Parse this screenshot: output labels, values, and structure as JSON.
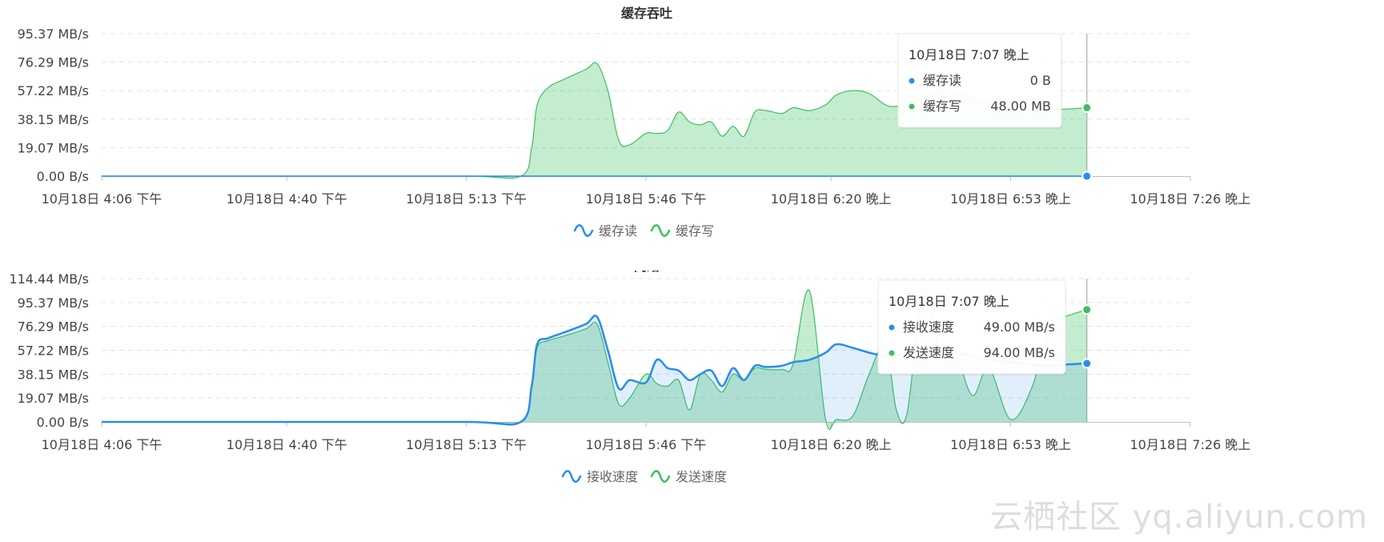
{
  "colors": {
    "read": "#2a8de9",
    "write": "#3cbf60",
    "read_fill": "rgba(42,141,233,0.14)",
    "write_fill": "rgba(60,191,96,0.30)"
  },
  "watermark": "云栖社区 yq.aliyun.com",
  "chart_data": [
    {
      "id": "cache",
      "type": "area",
      "title": "缓存吞吐",
      "x_tick_labels": [
        "10月18日 4:06 下午",
        "10月18日 4:40 下午",
        "10月18日 5:13 下午",
        "10月18日 5:46 下午",
        "10月18日 6:20 晚上",
        "10月18日 6:53 晚上",
        "10月18日 7:26 晚上"
      ],
      "y_tick_labels": [
        "0.00 B/s",
        "19.07 MB/s",
        "38.15 MB/s",
        "57.22 MB/s",
        "76.29 MB/s",
        "95.37 MB/s"
      ],
      "ylim": [
        0,
        100
      ],
      "grid": true,
      "legend_position": "bottom",
      "series": [
        {
          "name": "缓存读",
          "color": "#2a8de9",
          "x": [
            "16:06",
            "16:40",
            "17:13",
            "17:30",
            "18:00",
            "18:30",
            "19:07"
          ],
          "values": [
            0,
            0,
            0,
            0,
            0,
            0,
            0
          ]
        },
        {
          "name": "缓存写",
          "color": "#3cbf60",
          "x": [
            "16:06",
            "16:40",
            "17:13",
            "17:23",
            "17:25",
            "17:26",
            "17:28",
            "17:31",
            "17:35",
            "17:37",
            "17:39",
            "17:41",
            "17:43",
            "17:46",
            "17:48",
            "17:50",
            "17:52",
            "17:54",
            "17:56",
            "17:58",
            "18:00",
            "18:02",
            "18:04",
            "18:06",
            "18:08",
            "18:11",
            "18:13",
            "18:16",
            "18:19",
            "18:21",
            "18:24",
            "18:27",
            "18:30",
            "18:32",
            "18:34",
            "18:37",
            "18:40",
            "18:43",
            "18:46",
            "18:49",
            "18:53",
            "18:57",
            "19:00",
            "19:03",
            "19:07"
          ],
          "values": [
            0,
            0,
            0,
            0,
            20,
            50,
            62,
            68,
            75,
            79,
            60,
            25,
            22,
            30,
            30,
            32,
            45,
            38,
            36,
            38,
            28,
            35,
            28,
            45,
            46,
            44,
            48,
            46,
            50,
            57,
            60,
            58,
            50,
            49,
            52,
            55,
            60,
            58,
            55,
            52,
            50,
            48,
            47,
            47,
            48
          ]
        }
      ],
      "tooltip": {
        "time": "10月18日 7:07 晚上",
        "rows": [
          {
            "label": "缓存读",
            "value": "0 B"
          },
          {
            "label": "缓存写",
            "value": "48.00 MB"
          }
        ]
      }
    },
    {
      "id": "net",
      "type": "area",
      "title": "网络",
      "x_tick_labels": [
        "10月18日 4:06 下午",
        "10月18日 4:40 下午",
        "10月18日 5:13 下午",
        "10月18日 5:46 下午",
        "10月18日 6:20 晚上",
        "10月18日 6:53 晚上",
        "10月18日 7:26 晚上"
      ],
      "y_tick_labels": [
        "0.00 B/s",
        "19.07 MB/s",
        "38.15 MB/s",
        "57.22 MB/s",
        "76.29 MB/s",
        "95.37 MB/s",
        "114.44 MB/s"
      ],
      "ylim": [
        0,
        120
      ],
      "grid": true,
      "legend_position": "bottom",
      "series": [
        {
          "name": "接收速度",
          "color": "#2a8de9",
          "x": [
            "16:06",
            "16:40",
            "17:13",
            "17:23",
            "17:25",
            "17:26",
            "17:28",
            "17:31",
            "17:35",
            "17:37",
            "17:39",
            "17:41",
            "17:43",
            "17:46",
            "17:48",
            "17:50",
            "17:52",
            "17:54",
            "17:56",
            "17:58",
            "18:00",
            "18:02",
            "18:04",
            "18:06",
            "18:08",
            "18:11",
            "18:13",
            "18:16",
            "18:19",
            "18:21",
            "18:24",
            "18:27",
            "18:30",
            "18:32",
            "18:34",
            "18:37",
            "18:40",
            "18:43",
            "18:46",
            "18:49",
            "18:53",
            "18:57",
            "19:00",
            "19:03",
            "19:07"
          ],
          "values": [
            0,
            0,
            0,
            0,
            30,
            65,
            70,
            75,
            82,
            88,
            60,
            28,
            35,
            33,
            52,
            45,
            43,
            35,
            40,
            43,
            30,
            45,
            35,
            47,
            46,
            47,
            50,
            52,
            58,
            65,
            62,
            58,
            55,
            56,
            58,
            60,
            62,
            58,
            55,
            52,
            50,
            48,
            47,
            48,
            49
          ]
        },
        {
          "name": "发送速度",
          "color": "#3cbf60",
          "x": [
            "16:06",
            "16:40",
            "17:13",
            "17:23",
            "17:25",
            "17:26",
            "17:28",
            "17:31",
            "17:35",
            "17:37",
            "17:39",
            "17:41",
            "17:43",
            "17:46",
            "17:48",
            "17:50",
            "17:52",
            "17:54",
            "17:56",
            "17:58",
            "18:00",
            "18:02",
            "18:04",
            "18:06",
            "18:08",
            "18:11",
            "18:13",
            "18:16",
            "18:19",
            "18:21",
            "18:24",
            "18:27",
            "18:30",
            "18:32",
            "18:34",
            "18:37",
            "18:40",
            "18:43",
            "18:46",
            "18:49",
            "18:53",
            "18:57",
            "19:00",
            "19:03",
            "19:07"
          ],
          "values": [
            0,
            0,
            0,
            0,
            28,
            62,
            68,
            72,
            78,
            82,
            50,
            15,
            20,
            40,
            32,
            30,
            35,
            10,
            40,
            35,
            25,
            40,
            35,
            45,
            44,
            44,
            48,
            110,
            2,
            2,
            5,
            40,
            65,
            10,
            8,
            112,
            60,
            55,
            22,
            45,
            2,
            30,
            80,
            88,
            94
          ]
        }
      ],
      "tooltip": {
        "time": "10月18日 7:07 晚上",
        "rows": [
          {
            "label": "接收速度",
            "value": "49.00 MB/s"
          },
          {
            "label": "发送速度",
            "value": "94.00 MB/s"
          }
        ]
      }
    }
  ]
}
